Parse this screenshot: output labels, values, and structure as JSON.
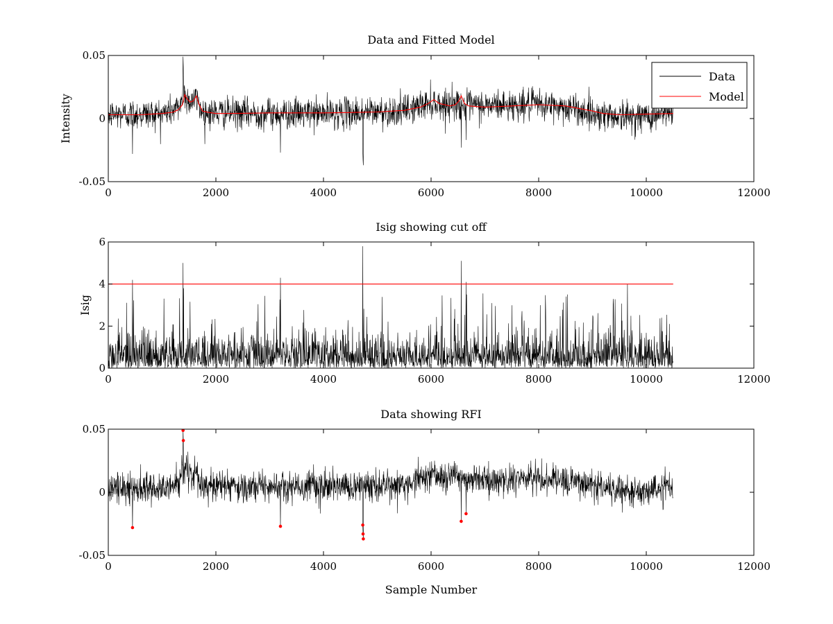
{
  "chart_data": [
    {
      "type": "line",
      "title": "Data and Fitted Model",
      "xlabel": "",
      "ylabel": "Intensity",
      "xlim": [
        0,
        12000
      ],
      "ylim": [
        -0.05,
        0.05
      ],
      "xticks": [
        0,
        2000,
        4000,
        6000,
        8000,
        10000,
        12000
      ],
      "xtick_labels": [
        "0",
        "2000",
        "4000",
        "6000",
        "8000",
        "10000",
        "12000"
      ],
      "yticks": [
        -0.05,
        0,
        0.05
      ],
      "ytick_labels": [
        "-0.05",
        "0",
        "0.05"
      ],
      "legend": {
        "position": "top-right",
        "entries": [
          "Data",
          "Model"
        ]
      },
      "series": [
        {
          "name": "Data",
          "color": "#000000",
          "kind": "noisy",
          "n_samples": 10500,
          "baseline": [
            [
              0,
              0.003
            ],
            [
              1000,
              0.004
            ],
            [
              1300,
              0.008
            ],
            [
              1400,
              0.02
            ],
            [
              1500,
              0.014
            ],
            [
              1650,
              0.015
            ],
            [
              1750,
              0.005
            ],
            [
              2500,
              0.004
            ],
            [
              4000,
              0.004
            ],
            [
              5500,
              0.006
            ],
            [
              6000,
              0.013
            ],
            [
              6200,
              0.011
            ],
            [
              6500,
              0.012
            ],
            [
              6600,
              0.01
            ],
            [
              8000,
              0.011
            ],
            [
              8500,
              0.009
            ],
            [
              9000,
              0.004
            ],
            [
              9500,
              0.002
            ],
            [
              10000,
              0.002
            ],
            [
              10500,
              0.004
            ]
          ],
          "noise_sd": 0.006,
          "spikes": [
            [
              450,
              -0.028
            ],
            [
              1390,
              0.049
            ],
            [
              1395,
              0.041
            ],
            [
              3200,
              -0.027
            ],
            [
              4730,
              -0.026
            ],
            [
              4735,
              -0.033
            ],
            [
              4740,
              -0.037
            ],
            [
              6560,
              -0.023
            ],
            [
              6650,
              -0.017
            ]
          ]
        },
        {
          "name": "Model",
          "color": "#ff0000",
          "kind": "line",
          "x": [
            0,
            200,
            400,
            600,
            800,
            1000,
            1100,
            1200,
            1300,
            1380,
            1420,
            1460,
            1520,
            1580,
            1640,
            1680,
            1750,
            1850,
            2000,
            2500,
            3000,
            3500,
            4000,
            4500,
            5000,
            5500,
            5800,
            5950,
            6050,
            6150,
            6250,
            6350,
            6450,
            6520,
            6560,
            6620,
            6700,
            7000,
            7500,
            8000,
            8500,
            9000,
            9200,
            9500,
            10000,
            10500
          ],
          "y": [
            0.003,
            0.003,
            0.003,
            0.003,
            0.0035,
            0.004,
            0.0045,
            0.005,
            0.007,
            0.011,
            0.019,
            0.016,
            0.013,
            0.014,
            0.018,
            0.012,
            0.006,
            0.005,
            0.004,
            0.0042,
            0.0045,
            0.0045,
            0.0045,
            0.0048,
            0.0052,
            0.0065,
            0.009,
            0.012,
            0.015,
            0.012,
            0.011,
            0.01,
            0.011,
            0.014,
            0.018,
            0.012,
            0.01,
            0.009,
            0.01,
            0.011,
            0.01,
            0.006,
            0.004,
            0.003,
            0.0035,
            0.004
          ]
        }
      ]
    },
    {
      "type": "line",
      "title": "Isig showing cut off",
      "xlabel": "",
      "ylabel": "Isig",
      "xlim": [
        0,
        12000
      ],
      "ylim": [
        0,
        6
      ],
      "xticks": [
        0,
        2000,
        4000,
        6000,
        8000,
        10000,
        12000
      ],
      "xtick_labels": [
        "0",
        "2000",
        "4000",
        "6000",
        "8000",
        "10000",
        "12000"
      ],
      "yticks": [
        0,
        2,
        4,
        6
      ],
      "ytick_labels": [
        "0",
        "2",
        "4",
        "6"
      ],
      "series": [
        {
          "name": "Isig",
          "color": "#000000",
          "kind": "noisy-abs",
          "n_samples": 10500,
          "mean": 0.8,
          "spikes": [
            [
              450,
              4.2
            ],
            [
              1390,
              5.0
            ],
            [
              1400,
              3.8
            ],
            [
              3200,
              4.3
            ],
            [
              4730,
              5.8
            ],
            [
              6560,
              5.1
            ],
            [
              6650,
              4.1
            ],
            [
              9650,
              4.0
            ]
          ]
        },
        {
          "name": "Cut off",
          "color": "#ff0000",
          "kind": "line",
          "x": [
            0,
            10500
          ],
          "y": [
            4,
            4
          ]
        }
      ]
    },
    {
      "type": "line",
      "title": "Data showing RFI",
      "xlabel": "Sample Number",
      "ylabel": "",
      "xlim": [
        0,
        12000
      ],
      "ylim": [
        -0.05,
        0.05
      ],
      "xticks": [
        0,
        2000,
        4000,
        6000,
        8000,
        10000,
        12000
      ],
      "xtick_labels": [
        "0",
        "2000",
        "4000",
        "6000",
        "8000",
        "10000",
        "12000"
      ],
      "yticks": [
        -0.05,
        0,
        0.05
      ],
      "ytick_labels": [
        "-0.05",
        "0",
        "0.05"
      ],
      "series": [
        {
          "name": "Data",
          "color": "#000000",
          "kind": "noisy",
          "n_samples": 10500,
          "baseline": [
            [
              0,
              0.003
            ],
            [
              1000,
              0.004
            ],
            [
              1300,
              0.008
            ],
            [
              1400,
              0.02
            ],
            [
              1500,
              0.014
            ],
            [
              1650,
              0.015
            ],
            [
              1750,
              0.005
            ],
            [
              2500,
              0.004
            ],
            [
              4000,
              0.004
            ],
            [
              5500,
              0.006
            ],
            [
              6000,
              0.013
            ],
            [
              6200,
              0.011
            ],
            [
              6500,
              0.012
            ],
            [
              6600,
              0.01
            ],
            [
              8000,
              0.011
            ],
            [
              8500,
              0.009
            ],
            [
              9000,
              0.004
            ],
            [
              9500,
              0.002
            ],
            [
              10000,
              0.002
            ],
            [
              10500,
              0.004
            ]
          ],
          "noise_sd": 0.006,
          "spikes": [
            [
              450,
              -0.028
            ],
            [
              1390,
              0.049
            ],
            [
              1395,
              0.041
            ],
            [
              3200,
              -0.027
            ],
            [
              4730,
              -0.026
            ],
            [
              4735,
              -0.033
            ],
            [
              4740,
              -0.037
            ],
            [
              6560,
              -0.023
            ],
            [
              6650,
              -0.017
            ]
          ]
        },
        {
          "name": "RFI",
          "color": "#ff0000",
          "kind": "markers",
          "x": [
            450,
            1390,
            1395,
            3200,
            4730,
            4735,
            4740,
            6560,
            6650
          ],
          "y": [
            -0.028,
            0.049,
            0.041,
            -0.027,
            -0.026,
            -0.033,
            -0.037,
            -0.023,
            -0.017
          ]
        }
      ]
    }
  ]
}
